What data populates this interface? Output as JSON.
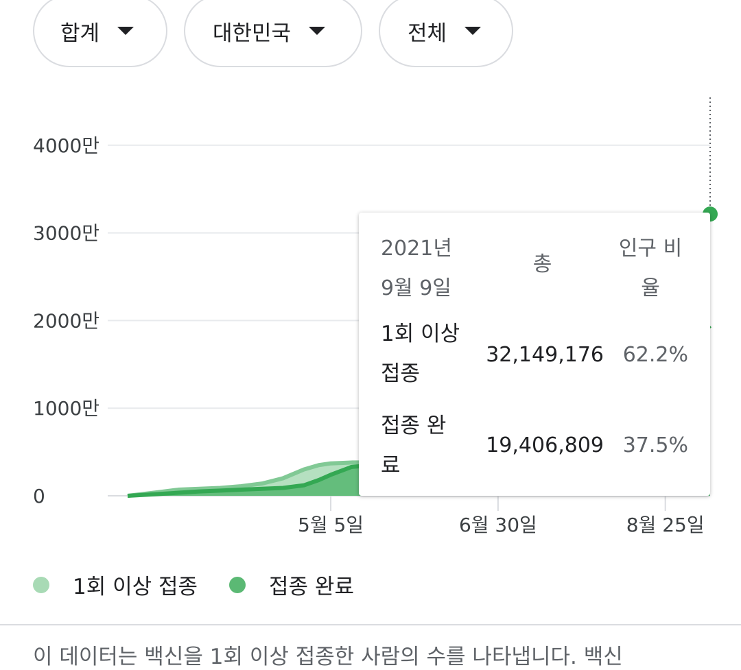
{
  "filters": [
    {
      "label": "합계"
    },
    {
      "label": "대한민국"
    },
    {
      "label": "전체"
    }
  ],
  "chart_data": {
    "type": "area",
    "ylim": [
      0,
      45000000
    ],
    "y_ticks": [
      {
        "value": 0,
        "label": "0"
      },
      {
        "value": 10000000,
        "label": "1000만"
      },
      {
        "value": 20000000,
        "label": "2000만"
      },
      {
        "value": 30000000,
        "label": "3000만"
      },
      {
        "value": 40000000,
        "label": "4000만"
      }
    ],
    "x_ticks": [
      "5월 5일",
      "6월 30일",
      "8월 25일"
    ],
    "x": [
      "2021-02-26",
      "2021-03-08",
      "2021-03-15",
      "2021-03-22",
      "2021-03-29",
      "2021-04-05",
      "2021-04-12",
      "2021-04-19",
      "2021-04-26",
      "2021-05-01",
      "2021-05-05",
      "2021-05-12",
      "2021-05-19",
      "2021-05-26",
      "2021-06-02",
      "2021-06-09",
      "2021-06-16",
      "2021-06-23",
      "2021-06-30",
      "2021-07-07",
      "2021-07-14",
      "2021-07-21",
      "2021-07-28",
      "2021-08-04",
      "2021-08-11",
      "2021-08-18",
      "2021-08-25",
      "2021-09-01",
      "2021-09-09"
    ],
    "series": [
      {
        "name": "1회 이상 접종",
        "color": "#a8dab5",
        "values": [
          0,
          400000,
          700000,
          800000,
          900000,
          1100000,
          1400000,
          2000000,
          3000000,
          3500000,
          3700000,
          3800000,
          3800000,
          3900000,
          6000000,
          10000000,
          12000000,
          14000000,
          15300000,
          15600000,
          16000000,
          16800000,
          17800000,
          19500000,
          21500000,
          24000000,
          26500000,
          29000000,
          32149176
        ]
      },
      {
        "name": "접종 완료",
        "color": "#5bb974",
        "values": [
          0,
          200000,
          350000,
          500000,
          600000,
          700000,
          800000,
          900000,
          1200000,
          1800000,
          2400000,
          3300000,
          3500000,
          3600000,
          3700000,
          3800000,
          4200000,
          4800000,
          5500000,
          6000000,
          6600000,
          7200000,
          7900000,
          9000000,
          10500000,
          12500000,
          14500000,
          17000000,
          19406809
        ]
      }
    ],
    "legend_position": "bottom",
    "grid": true
  },
  "tooltip": {
    "date_line1": "2021년",
    "date_line2": "9월 9일",
    "col_total": "총",
    "col_ratio_line1": "인구 비",
    "col_ratio_line2": "율",
    "rows": [
      {
        "label_line1": "1회 이상",
        "label_line2": "접종",
        "total": "32,149,176",
        "ratio": "62.2%"
      },
      {
        "label_line1": "접종 완",
        "label_line2": "료",
        "total": "19,406,809",
        "ratio": "37.5%"
      }
    ]
  },
  "legend": [
    {
      "label": "1회 이상 접종",
      "color": "#a8dab5"
    },
    {
      "label": "접종 완료",
      "color": "#5bb974"
    }
  ],
  "footnote": "이 데이터는 백신을 1회 이상 접종한 사람의 수를 나타냅니다. 백신"
}
